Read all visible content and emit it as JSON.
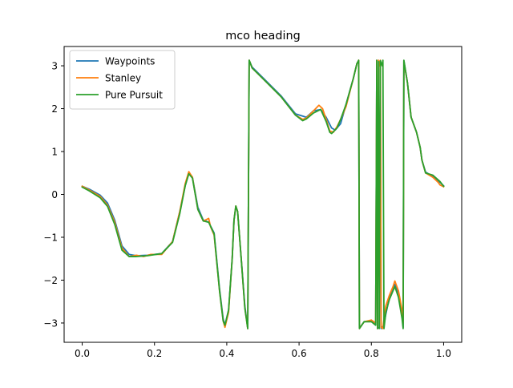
{
  "chart_data": {
    "type": "line",
    "title": "mco heading",
    "xlabel": "",
    "ylabel": "",
    "xlim": [
      -0.05,
      1.05
    ],
    "ylim": [
      -3.45,
      3.45
    ],
    "xticks": [
      0.0,
      0.2,
      0.4,
      0.6,
      0.8,
      1.0
    ],
    "xtick_labels": [
      "0.0",
      "0.2",
      "0.4",
      "0.6",
      "0.8",
      "1.0"
    ],
    "yticks": [
      -3,
      -2,
      -1,
      0,
      1,
      2,
      3
    ],
    "ytick_labels": [
      "−3",
      "−2",
      "−1",
      "0",
      "1",
      "2",
      "3"
    ],
    "grid": false,
    "legend_position": "upper-left",
    "series": [
      {
        "name": "Waypoints",
        "color": "#1f77b4",
        "points": [
          [
            0.0,
            0.19
          ],
          [
            0.02,
            0.12
          ],
          [
            0.05,
            -0.02
          ],
          [
            0.07,
            -0.2
          ],
          [
            0.09,
            -0.6
          ],
          [
            0.11,
            -1.2
          ],
          [
            0.13,
            -1.4
          ],
          [
            0.15,
            -1.43
          ],
          [
            0.18,
            -1.42
          ],
          [
            0.22,
            -1.38
          ],
          [
            0.25,
            -1.1
          ],
          [
            0.27,
            -0.4
          ],
          [
            0.285,
            0.2
          ],
          [
            0.295,
            0.5
          ],
          [
            0.305,
            0.4
          ],
          [
            0.32,
            -0.3
          ],
          [
            0.335,
            -0.6
          ],
          [
            0.35,
            -0.65
          ],
          [
            0.365,
            -0.9
          ],
          [
            0.38,
            -2.2
          ],
          [
            0.39,
            -2.9
          ],
          [
            0.395,
            -3.05
          ],
          [
            0.405,
            -2.7
          ],
          [
            0.415,
            -1.5
          ],
          [
            0.42,
            -0.6
          ],
          [
            0.425,
            -0.28
          ],
          [
            0.43,
            -0.4
          ],
          [
            0.44,
            -1.5
          ],
          [
            0.45,
            -2.6
          ],
          [
            0.458,
            -3.13
          ],
          [
            0.462,
            3.13
          ],
          [
            0.47,
            2.97
          ],
          [
            0.5,
            2.72
          ],
          [
            0.55,
            2.3
          ],
          [
            0.59,
            1.88
          ],
          [
            0.62,
            1.8
          ],
          [
            0.64,
            1.95
          ],
          [
            0.66,
            1.98
          ],
          [
            0.675,
            1.8
          ],
          [
            0.69,
            1.55
          ],
          [
            0.7,
            1.5
          ],
          [
            0.715,
            1.65
          ],
          [
            0.73,
            2.1
          ],
          [
            0.75,
            2.7
          ],
          [
            0.76,
            3.05
          ],
          [
            0.765,
            3.12
          ],
          [
            0.767,
            -3.12
          ],
          [
            0.78,
            -2.97
          ],
          [
            0.8,
            -2.95
          ],
          [
            0.812,
            -3.05
          ],
          [
            0.815,
            3.13
          ],
          [
            0.817,
            -3.13
          ],
          [
            0.822,
            -3.1
          ],
          [
            0.825,
            3.12
          ],
          [
            0.827,
            -3.13
          ],
          [
            0.835,
            -3.05
          ],
          [
            0.84,
            -2.8
          ],
          [
            0.85,
            -2.4
          ],
          [
            0.86,
            -2.2
          ],
          [
            0.865,
            -2.1
          ],
          [
            0.875,
            -2.3
          ],
          [
            0.885,
            -2.8
          ],
          [
            0.888,
            -3.1
          ],
          [
            0.89,
            3.12
          ],
          [
            0.9,
            2.6
          ],
          [
            0.91,
            1.8
          ],
          [
            0.925,
            1.45
          ],
          [
            0.935,
            1.1
          ],
          [
            0.94,
            0.8
          ],
          [
            0.95,
            0.52
          ],
          [
            0.97,
            0.42
          ],
          [
            0.99,
            0.28
          ],
          [
            1.0,
            0.2
          ]
        ]
      },
      {
        "name": "Stanley",
        "color": "#ff7f0e",
        "points": [
          [
            0.0,
            0.19
          ],
          [
            0.02,
            0.1
          ],
          [
            0.05,
            -0.05
          ],
          [
            0.07,
            -0.25
          ],
          [
            0.09,
            -0.65
          ],
          [
            0.11,
            -1.25
          ],
          [
            0.13,
            -1.45
          ],
          [
            0.15,
            -1.42
          ],
          [
            0.17,
            -1.45
          ],
          [
            0.19,
            -1.4
          ],
          [
            0.22,
            -1.4
          ],
          [
            0.25,
            -1.1
          ],
          [
            0.27,
            -0.4
          ],
          [
            0.285,
            0.25
          ],
          [
            0.295,
            0.53
          ],
          [
            0.305,
            0.4
          ],
          [
            0.32,
            -0.35
          ],
          [
            0.335,
            -0.62
          ],
          [
            0.345,
            -0.58
          ],
          [
            0.35,
            -0.56
          ],
          [
            0.355,
            -0.75
          ],
          [
            0.365,
            -0.95
          ],
          [
            0.38,
            -2.25
          ],
          [
            0.39,
            -2.95
          ],
          [
            0.395,
            -3.1
          ],
          [
            0.405,
            -2.75
          ],
          [
            0.415,
            -1.5
          ],
          [
            0.42,
            -0.6
          ],
          [
            0.425,
            -0.27
          ],
          [
            0.43,
            -0.4
          ],
          [
            0.44,
            -1.5
          ],
          [
            0.45,
            -2.65
          ],
          [
            0.458,
            -3.13
          ],
          [
            0.462,
            3.13
          ],
          [
            0.47,
            2.95
          ],
          [
            0.5,
            2.7
          ],
          [
            0.55,
            2.28
          ],
          [
            0.59,
            1.85
          ],
          [
            0.61,
            1.75
          ],
          [
            0.62,
            1.78
          ],
          [
            0.64,
            1.95
          ],
          [
            0.655,
            2.08
          ],
          [
            0.665,
            2.0
          ],
          [
            0.675,
            1.75
          ],
          [
            0.685,
            1.48
          ],
          [
            0.695,
            1.45
          ],
          [
            0.705,
            1.58
          ],
          [
            0.715,
            1.75
          ],
          [
            0.73,
            2.05
          ],
          [
            0.75,
            2.7
          ],
          [
            0.76,
            3.05
          ],
          [
            0.765,
            3.13
          ],
          [
            0.767,
            -3.13
          ],
          [
            0.78,
            -2.97
          ],
          [
            0.8,
            -2.93
          ],
          [
            0.812,
            -3.0
          ],
          [
            0.815,
            3.13
          ],
          [
            0.817,
            -3.13
          ],
          [
            0.82,
            3.13
          ],
          [
            0.822,
            3.0
          ],
          [
            0.825,
            3.13
          ],
          [
            0.827,
            -3.1
          ],
          [
            0.832,
            -3.13
          ],
          [
            0.835,
            -2.9
          ],
          [
            0.84,
            -2.6
          ],
          [
            0.85,
            -2.35
          ],
          [
            0.86,
            -2.15
          ],
          [
            0.865,
            -2.02
          ],
          [
            0.875,
            -2.25
          ],
          [
            0.885,
            -2.7
          ],
          [
            0.888,
            -3.0
          ],
          [
            0.89,
            3.1
          ],
          [
            0.9,
            2.6
          ],
          [
            0.91,
            1.8
          ],
          [
            0.925,
            1.45
          ],
          [
            0.935,
            1.1
          ],
          [
            0.94,
            0.8
          ],
          [
            0.95,
            0.5
          ],
          [
            0.97,
            0.4
          ],
          [
            0.985,
            0.28
          ],
          [
            0.99,
            0.22
          ],
          [
            1.0,
            0.18
          ]
        ]
      },
      {
        "name": "Pure Pursuit",
        "color": "#2ca02c",
        "points": [
          [
            0.0,
            0.17
          ],
          [
            0.02,
            0.08
          ],
          [
            0.05,
            -0.08
          ],
          [
            0.07,
            -0.28
          ],
          [
            0.09,
            -0.7
          ],
          [
            0.11,
            -1.3
          ],
          [
            0.13,
            -1.45
          ],
          [
            0.15,
            -1.45
          ],
          [
            0.18,
            -1.43
          ],
          [
            0.22,
            -1.38
          ],
          [
            0.25,
            -1.12
          ],
          [
            0.27,
            -0.45
          ],
          [
            0.285,
            0.2
          ],
          [
            0.295,
            0.48
          ],
          [
            0.305,
            0.38
          ],
          [
            0.32,
            -0.35
          ],
          [
            0.335,
            -0.62
          ],
          [
            0.35,
            -0.65
          ],
          [
            0.365,
            -0.92
          ],
          [
            0.38,
            -2.25
          ],
          [
            0.39,
            -2.95
          ],
          [
            0.395,
            -3.05
          ],
          [
            0.405,
            -2.7
          ],
          [
            0.415,
            -1.5
          ],
          [
            0.42,
            -0.6
          ],
          [
            0.425,
            -0.27
          ],
          [
            0.43,
            -0.4
          ],
          [
            0.44,
            -1.5
          ],
          [
            0.45,
            -2.65
          ],
          [
            0.458,
            -3.13
          ],
          [
            0.462,
            3.13
          ],
          [
            0.47,
            2.95
          ],
          [
            0.5,
            2.7
          ],
          [
            0.55,
            2.28
          ],
          [
            0.59,
            1.85
          ],
          [
            0.61,
            1.72
          ],
          [
            0.62,
            1.76
          ],
          [
            0.64,
            1.9
          ],
          [
            0.66,
            1.98
          ],
          [
            0.675,
            1.7
          ],
          [
            0.685,
            1.45
          ],
          [
            0.69,
            1.42
          ],
          [
            0.705,
            1.55
          ],
          [
            0.715,
            1.75
          ],
          [
            0.73,
            2.1
          ],
          [
            0.75,
            2.7
          ],
          [
            0.76,
            3.05
          ],
          [
            0.765,
            3.13
          ],
          [
            0.767,
            -3.13
          ],
          [
            0.78,
            -2.97
          ],
          [
            0.8,
            -2.97
          ],
          [
            0.812,
            -3.05
          ],
          [
            0.815,
            3.13
          ],
          [
            0.817,
            -3.13
          ],
          [
            0.82,
            3.1
          ],
          [
            0.822,
            -3.13
          ],
          [
            0.825,
            3.12
          ],
          [
            0.83,
            3.0
          ],
          [
            0.832,
            3.13
          ],
          [
            0.835,
            -3.13
          ],
          [
            0.84,
            -2.75
          ],
          [
            0.85,
            -2.45
          ],
          [
            0.86,
            -2.25
          ],
          [
            0.865,
            -2.15
          ],
          [
            0.875,
            -2.4
          ],
          [
            0.885,
            -2.9
          ],
          [
            0.888,
            -3.13
          ],
          [
            0.89,
            3.13
          ],
          [
            0.9,
            2.6
          ],
          [
            0.91,
            1.8
          ],
          [
            0.925,
            1.45
          ],
          [
            0.935,
            1.1
          ],
          [
            0.94,
            0.8
          ],
          [
            0.95,
            0.5
          ],
          [
            0.97,
            0.45
          ],
          [
            0.99,
            0.3
          ],
          [
            1.0,
            0.19
          ]
        ]
      }
    ]
  }
}
